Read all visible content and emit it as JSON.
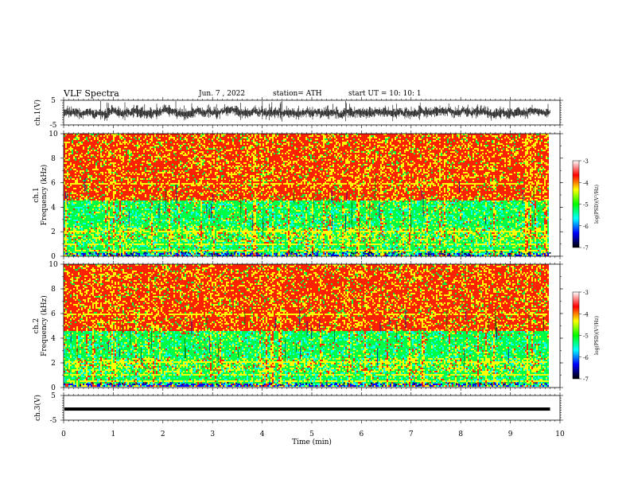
{
  "header": {
    "title": "VLF  Spectra",
    "date": "Jun. 7  , 2022",
    "station": "station= ATH",
    "start_ut": "start  UT  =    10: 10: 1"
  },
  "chart_data": {
    "type": "spectrogram",
    "xlabel": "Time  (min)",
    "xlim": [
      0,
      10
    ],
    "xticks": [
      "0",
      "1",
      "2",
      "3",
      "4",
      "5",
      "6",
      "7",
      "8",
      "9",
      "10"
    ],
    "data_end_min": 9.8,
    "panels": [
      {
        "id": "ch1-waveform",
        "type": "line",
        "ylabel": "ch.1(V)",
        "ylim": [
          -5,
          5
        ],
        "yticks": [
          "5",
          "-5"
        ],
        "trace_color": "#000000"
      },
      {
        "id": "ch1-spectrogram",
        "type": "heatmap",
        "ylabel": "ch.1\nFrequency  (kHz)",
        "ylabel_lines": [
          "ch.1",
          "Frequency  (kHz)"
        ],
        "ylim": [
          0,
          10
        ],
        "yticks": [
          "0",
          "2",
          "4",
          "6",
          "8",
          "10"
        ],
        "bands_khz": [
          {
            "from": 0.0,
            "to": 0.3,
            "level": "mixed"
          },
          {
            "from": 0.3,
            "to": 1.2,
            "level": "green"
          },
          {
            "from": 1.2,
            "to": 2.3,
            "level": "green-yellow"
          },
          {
            "from": 2.3,
            "to": 4.5,
            "level": "green"
          },
          {
            "from": 4.5,
            "to": 10.0,
            "level": "red"
          }
        ]
      },
      {
        "id": "ch2-spectrogram",
        "type": "heatmap",
        "ylabel": "ch.2\nFrequency  (kHz)",
        "ylabel_lines": [
          "ch.2",
          "Frequency  (kHz)"
        ],
        "ylim": [
          0,
          10
        ],
        "yticks": [
          "0",
          "2",
          "4",
          "6",
          "8",
          "10"
        ],
        "bands_khz": [
          {
            "from": 0.0,
            "to": 0.3,
            "level": "mixed"
          },
          {
            "from": 0.3,
            "to": 1.2,
            "level": "green"
          },
          {
            "from": 1.2,
            "to": 2.3,
            "level": "green-yellow"
          },
          {
            "from": 2.3,
            "to": 4.5,
            "level": "green"
          },
          {
            "from": 4.5,
            "to": 10.0,
            "level": "red"
          }
        ]
      },
      {
        "id": "ch3-waveform",
        "type": "line",
        "ylabel": "ch.3(V)",
        "ylim": [
          -5,
          5
        ],
        "yticks": [
          "5",
          "-5"
        ],
        "trace_value": -0.5,
        "trace_color": "#000000"
      }
    ],
    "colorbar": {
      "label": "log(PSD)(V²/Hz)",
      "range": [
        -7,
        -3
      ],
      "ticks": [
        "-3",
        "-4",
        "-5",
        "-6",
        "-7"
      ],
      "stops": [
        "#000000",
        "#0000ff",
        "#00ffff",
        "#00ff00",
        "#ffff00",
        "#ff0000",
        "#ffffff"
      ]
    },
    "colors": {
      "red": "#ff2200",
      "yellow": "#ffff00",
      "green": "#00ff44",
      "cyan": "#00ffff",
      "blue": "#0000ff"
    }
  }
}
